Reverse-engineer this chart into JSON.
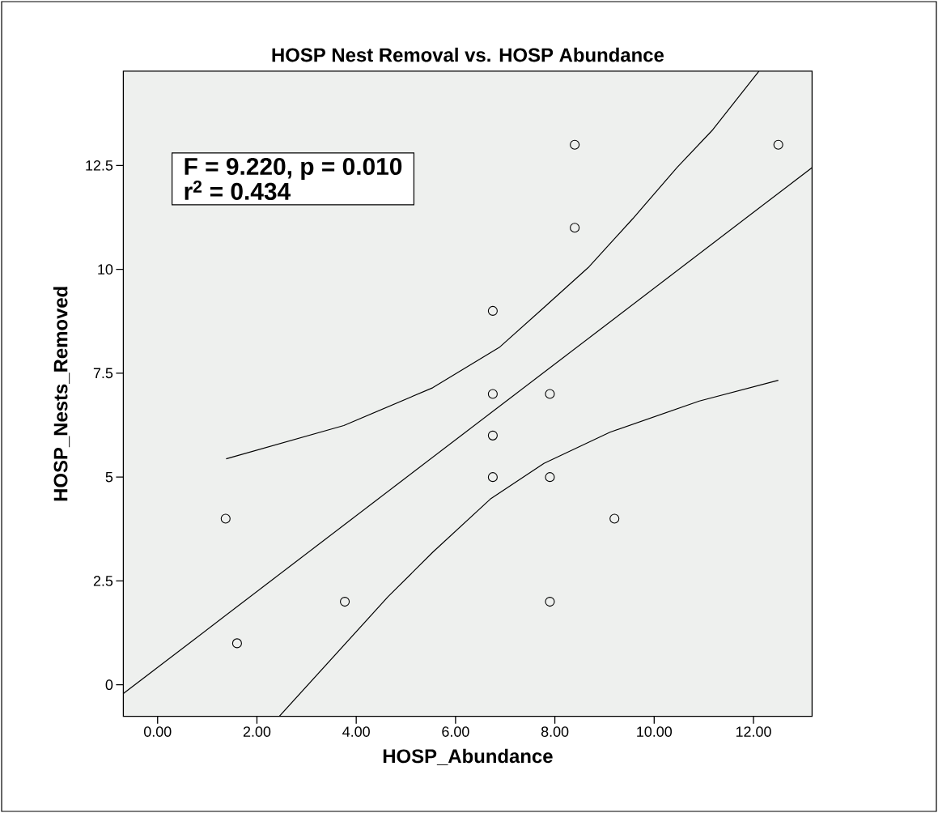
{
  "chart_data": {
    "type": "scatter",
    "title": "HOSP Nest Removal vs. HOSP Abundance",
    "xlabel": "HOSP_Abundance",
    "ylabel": "HOSP_Nests_Removed",
    "xlim": [
      -0.69,
      13.18
    ],
    "ylim": [
      -0.76,
      14.77
    ],
    "xticks": [
      {
        "value": 0,
        "label": "0.00"
      },
      {
        "value": 2,
        "label": "2.00"
      },
      {
        "value": 4,
        "label": "4.00"
      },
      {
        "value": 6,
        "label": "6.00"
      },
      {
        "value": 8,
        "label": "8.00"
      },
      {
        "value": 10,
        "label": "10.00"
      },
      {
        "value": 12,
        "label": "12.00"
      }
    ],
    "yticks": [
      0,
      2.5,
      5,
      7.5,
      10,
      12.5
    ],
    "series": [
      {
        "marker": "circle",
        "color": "#000000",
        "x": [
          1.37,
          1.6,
          3.77,
          6.75,
          6.75,
          6.75,
          6.75,
          7.9,
          7.9,
          7.9,
          8.4,
          8.4,
          9.2,
          12.5
        ],
        "values": [
          4,
          1,
          2,
          9,
          7,
          6,
          5,
          7,
          5,
          2,
          13,
          11,
          4,
          13
        ]
      },
      {
        "type": "line",
        "marker": "none",
        "color": "#000000",
        "x": [
          -0.69,
          13.18
        ],
        "values": [
          -0.21,
          12.45
        ]
      },
      {
        "type": "line",
        "marker": "none",
        "color": "#000000",
        "x": [
          1.38,
          3.75,
          5.54,
          6.88,
          7.78,
          8.67,
          9.57,
          10.46,
          11.18,
          12.11
        ],
        "values": [
          5.44,
          6.24,
          7.15,
          8.12,
          9.08,
          10.04,
          11.22,
          12.45,
          13.36,
          14.77
        ]
      },
      {
        "type": "line",
        "marker": "none",
        "color": "#000000",
        "x": [
          2.45,
          4.64,
          5.54,
          6.7,
          7.78,
          9.11,
          10.91,
          12.5
        ],
        "values": [
          -0.76,
          2.12,
          3.19,
          4.47,
          5.33,
          6.08,
          6.83,
          7.33
        ]
      }
    ],
    "annotations": [
      "F = 9.220, p = 0.010",
      "r$^{2}$ = 0.434"
    ]
  }
}
